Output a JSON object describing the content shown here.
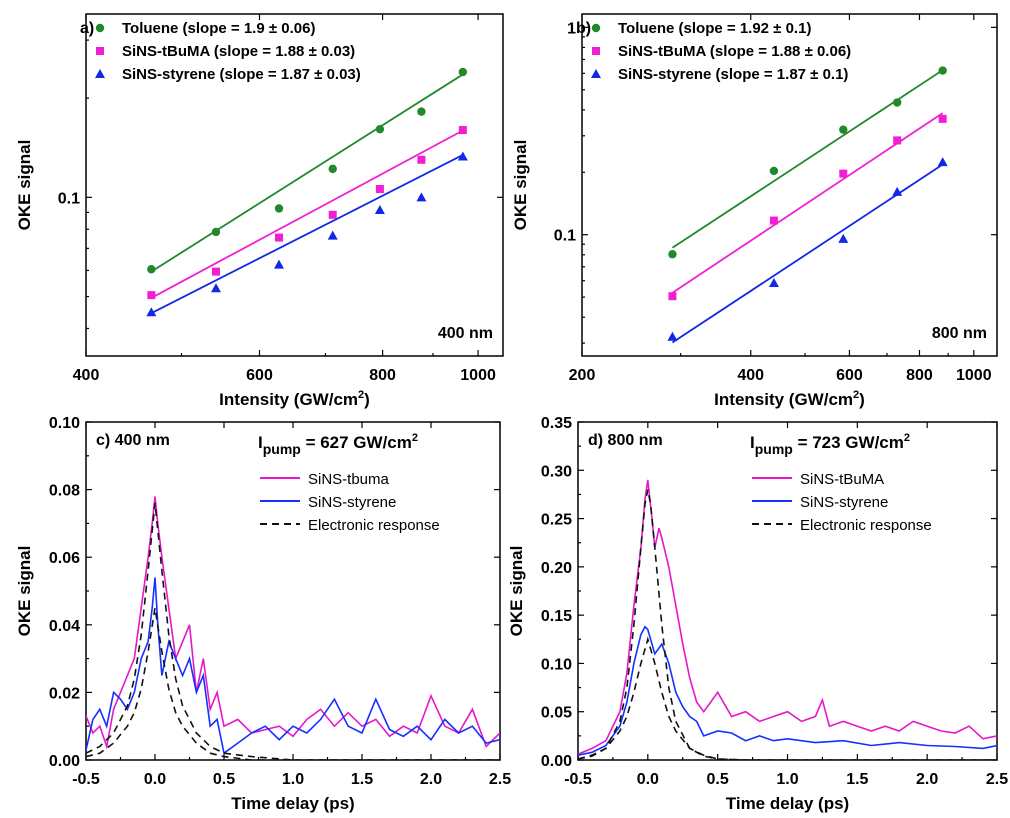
{
  "chart_data": [
    {
      "type": "scatter",
      "panel_label": "a)",
      "annotation": "400 nm",
      "xlabel": "Intensity",
      "xlabel_unit": "(GW/cm",
      "xlabel_sup": "2",
      "xlabel_close": ")",
      "ylabel": "OKE signal",
      "xscale": "log",
      "yscale": "log",
      "xlim": [
        400,
        1060
      ],
      "ylim": [
        0.033,
        0.36
      ],
      "xticks": [
        {
          "value": 400,
          "label": "400"
        },
        {
          "value": 600,
          "label": "600"
        },
        {
          "value": 800,
          "label": "800"
        },
        {
          "value": 1000,
          "label": "1000"
        }
      ],
      "yticks": [
        {
          "value": 0.1,
          "label": "0.1"
        }
      ],
      "legend_position": "top-left",
      "series": [
        {
          "name": "Toluene (slope = 1.9 ± 0.06)",
          "color": "#22892a",
          "marker": "circle",
          "x": [
            466,
            542,
            628,
            712,
            795,
            876,
            965
          ],
          "y": [
            0.0605,
            0.0785,
            0.0925,
            0.122,
            0.161,
            0.182,
            0.24
          ],
          "fit_x": [
            466,
            965
          ],
          "fit_y": [
            0.0595,
            0.236
          ]
        },
        {
          "name": "SiNS-tBuMA (slope = 1.88 ± 0.03)",
          "color": "#f21ed2",
          "marker": "square",
          "x": [
            466,
            542,
            628,
            712,
            795,
            876,
            965
          ],
          "y": [
            0.0505,
            0.0595,
            0.0755,
            0.0885,
            0.106,
            0.13,
            0.16
          ],
          "fit_x": [
            466,
            965
          ],
          "fit_y": [
            0.0495,
            0.1595
          ]
        },
        {
          "name": "SiNS-styrene (slope = 1.87 ± 0.03)",
          "color": "#1128e8",
          "marker": "triangle",
          "x": [
            466,
            542,
            628,
            712,
            795,
            876,
            965
          ],
          "y": [
            0.0448,
            0.053,
            0.0625,
            0.0765,
            0.0915,
            0.1,
            0.133
          ],
          "fit_x": [
            466,
            965
          ],
          "fit_y": [
            0.0445,
            0.1345
          ]
        }
      ]
    },
    {
      "type": "scatter",
      "panel_label": "b)",
      "annotation": "800 nm",
      "xlabel": "Intensity",
      "xlabel_unit": "(GW/cm",
      "xlabel_sup": "2",
      "xlabel_close": ")",
      "ylabel": "OKE signal",
      "xscale": "log",
      "yscale": "log",
      "xlim": [
        200,
        1100
      ],
      "ylim": [
        0.026,
        1.16
      ],
      "xticks": [
        {
          "value": 200,
          "label": "200"
        },
        {
          "value": 400,
          "label": "400"
        },
        {
          "value": 600,
          "label": "600"
        },
        {
          "value": 800,
          "label": "800"
        },
        {
          "value": 1000,
          "label": "1000"
        }
      ],
      "yticks": [
        {
          "value": 0.1,
          "label": "0.1"
        },
        {
          "value": 1,
          "label": "1"
        }
      ],
      "legend_position": "top-left",
      "series": [
        {
          "name": "Toluene (slope = 1.92 ± 0.1)",
          "color": "#22892a",
          "marker": "circle",
          "x": [
            290,
            440,
            585,
            730,
            880
          ],
          "y": [
            0.0805,
            0.203,
            0.321,
            0.434,
            0.619
          ],
          "fit_x": [
            290,
            880
          ],
          "fit_y": [
            0.0865,
            0.622
          ]
        },
        {
          "name": "SiNS-tBuMA (slope = 1.88 ± 0.06)",
          "color": "#f21ed2",
          "marker": "square",
          "x": [
            290,
            440,
            585,
            730,
            880
          ],
          "y": [
            0.0505,
            0.117,
            0.197,
            0.285,
            0.362
          ],
          "fit_x": [
            290,
            880
          ],
          "fit_y": [
            0.0525,
            0.386
          ]
        },
        {
          "name": "SiNS-styrene (slope = 1.87 ± 0.1)",
          "color": "#1128e8",
          "marker": "triangle",
          "x": [
            290,
            440,
            585,
            730,
            880
          ],
          "y": [
            0.0322,
            0.0585,
            0.0955,
            0.161,
            0.224
          ],
          "fit_x": [
            290,
            880
          ],
          "fit_y": [
            0.0302,
            0.218
          ]
        }
      ]
    },
    {
      "type": "line",
      "panel_label": "c) 400 nm",
      "pump_main": "I",
      "pump_sub": "pump",
      "pump_rest": " = 627 GW/cm",
      "pump_sup": "2",
      "xlabel": "Time delay (ps)",
      "ylabel": "OKE signal",
      "xlim": [
        -0.5,
        2.5
      ],
      "ylim": [
        0,
        0.1
      ],
      "xticks": [
        {
          "value": -0.5,
          "label": "-0.5"
        },
        {
          "value": 0,
          "label": "0.0"
        },
        {
          "value": 0.5,
          "label": "0.5"
        },
        {
          "value": 1,
          "label": "1.0"
        },
        {
          "value": 1.5,
          "label": "1.5"
        },
        {
          "value": 2,
          "label": "2.0"
        },
        {
          "value": 2.5,
          "label": "2.5"
        }
      ],
      "yticks": [
        {
          "value": 0,
          "label": "0.00"
        },
        {
          "value": 0.02,
          "label": "0.02"
        },
        {
          "value": 0.04,
          "label": "0.04"
        },
        {
          "value": 0.06,
          "label": "0.06"
        },
        {
          "value": 0.08,
          "label": "0.08"
        },
        {
          "value": 0.1,
          "label": "0.10"
        }
      ],
      "legend_position": "top-right",
      "series": [
        {
          "name": "SiNS-tbuma",
          "color": "#e617c8",
          "dash": "solid",
          "x": [
            -0.5,
            -0.45,
            -0.4,
            -0.35,
            -0.3,
            -0.25,
            -0.2,
            -0.15,
            -0.1,
            -0.05,
            -0.02,
            0.0,
            0.02,
            0.05,
            0.1,
            0.15,
            0.2,
            0.25,
            0.3,
            0.35,
            0.4,
            0.45,
            0.5,
            0.6,
            0.7,
            0.8,
            0.9,
            1.0,
            1.1,
            1.2,
            1.3,
            1.4,
            1.5,
            1.6,
            1.7,
            1.8,
            1.9,
            2.0,
            2.1,
            2.2,
            2.3,
            2.4,
            2.5
          ],
          "y": [
            0.013,
            0.008,
            0.01,
            0.004,
            0.015,
            0.02,
            0.025,
            0.03,
            0.045,
            0.06,
            0.07,
            0.078,
            0.07,
            0.06,
            0.045,
            0.03,
            0.035,
            0.04,
            0.02,
            0.03,
            0.015,
            0.02,
            0.01,
            0.012,
            0.008,
            0.009,
            0.01,
            0.007,
            0.012,
            0.015,
            0.01,
            0.014,
            0.01,
            0.012,
            0.007,
            0.01,
            0.008,
            0.019,
            0.01,
            0.008,
            0.015,
            0.004,
            0.008
          ]
        },
        {
          "name": "SiNS-styrene",
          "color": "#1530ff",
          "dash": "solid",
          "x": [
            -0.5,
            -0.45,
            -0.4,
            -0.35,
            -0.3,
            -0.25,
            -0.2,
            -0.15,
            -0.1,
            -0.05,
            -0.02,
            0.0,
            0.02,
            0.05,
            0.1,
            0.15,
            0.2,
            0.25,
            0.3,
            0.35,
            0.4,
            0.45,
            0.5,
            0.6,
            0.7,
            0.8,
            0.9,
            1.0,
            1.1,
            1.2,
            1.3,
            1.4,
            1.5,
            1.6,
            1.7,
            1.8,
            1.9,
            2.0,
            2.1,
            2.2,
            2.3,
            2.4,
            2.5
          ],
          "y": [
            0.003,
            0.012,
            0.015,
            0.01,
            0.02,
            0.018,
            0.015,
            0.02,
            0.03,
            0.035,
            0.045,
            0.054,
            0.04,
            0.025,
            0.035,
            0.03,
            0.025,
            0.03,
            0.02,
            0.025,
            0.01,
            0.012,
            0.002,
            0.005,
            0.008,
            0.01,
            0.006,
            0.01,
            0.008,
            0.012,
            0.018,
            0.01,
            0.008,
            0.018,
            0.009,
            0.007,
            0.01,
            0.006,
            0.012,
            0.008,
            0.01,
            0.005,
            0.006
          ]
        },
        {
          "name": "Electronic response",
          "color": "#111111",
          "dash": "dashed",
          "x": [
            -0.5,
            -0.4,
            -0.3,
            -0.2,
            -0.15,
            -0.1,
            -0.05,
            0.0,
            0.05,
            0.1,
            0.15,
            0.2,
            0.3,
            0.4,
            0.5,
            0.7,
            1.0,
            1.5,
            2.0,
            2.5
          ],
          "y": [
            0.002,
            0.004,
            0.008,
            0.016,
            0.024,
            0.037,
            0.056,
            0.076,
            0.056,
            0.037,
            0.024,
            0.016,
            0.008,
            0.004,
            0.002,
            0.001,
            0.0,
            0.0,
            0.0,
            0.0
          ]
        },
        {
          "name": "",
          "color": "#111111",
          "dash": "dashed",
          "x": [
            -0.5,
            -0.4,
            -0.3,
            -0.2,
            -0.15,
            -0.1,
            -0.05,
            0.0,
            0.05,
            0.1,
            0.15,
            0.2,
            0.3,
            0.4,
            0.5,
            0.7,
            1.0,
            1.5,
            2.0,
            2.5
          ],
          "y": [
            0.001,
            0.002,
            0.005,
            0.01,
            0.014,
            0.021,
            0.032,
            0.045,
            0.032,
            0.021,
            0.014,
            0.01,
            0.005,
            0.002,
            0.001,
            0.0,
            0.0,
            0.0,
            0.0,
            0.0
          ]
        }
      ]
    },
    {
      "type": "line",
      "panel_label": "d) 800 nm",
      "pump_main": "I",
      "pump_sub": "pump",
      "pump_rest": " = 723 GW/cm",
      "pump_sup": "2",
      "xlabel": "Time delay (ps)",
      "ylabel": "OKE signal",
      "xlim": [
        -0.5,
        2.5
      ],
      "ylim": [
        0,
        0.35
      ],
      "xticks": [
        {
          "value": -0.5,
          "label": "-0.5"
        },
        {
          "value": 0,
          "label": "0.0"
        },
        {
          "value": 0.5,
          "label": "0.5"
        },
        {
          "value": 1,
          "label": "1.0"
        },
        {
          "value": 1.5,
          "label": "1.5"
        },
        {
          "value": 2,
          "label": "2.0"
        },
        {
          "value": 2.5,
          "label": "2.5"
        }
      ],
      "yticks": [
        {
          "value": 0,
          "label": "0.00"
        },
        {
          "value": 0.05,
          "label": "0.05"
        },
        {
          "value": 0.1,
          "label": "0.10"
        },
        {
          "value": 0.15,
          "label": "0.15"
        },
        {
          "value": 0.2,
          "label": "0.20"
        },
        {
          "value": 0.25,
          "label": "0.25"
        },
        {
          "value": 0.3,
          "label": "0.30"
        },
        {
          "value": 0.35,
          "label": "0.35"
        }
      ],
      "legend_position": "top-right",
      "series": [
        {
          "name": "SiNS-tBuMA",
          "color": "#e617c8",
          "dash": "solid",
          "x": [
            -0.5,
            -0.4,
            -0.3,
            -0.2,
            -0.15,
            -0.1,
            -0.05,
            -0.02,
            0.0,
            0.03,
            0.05,
            0.08,
            0.1,
            0.15,
            0.2,
            0.25,
            0.3,
            0.35,
            0.4,
            0.5,
            0.6,
            0.7,
            0.8,
            0.9,
            1.0,
            1.1,
            1.2,
            1.25,
            1.3,
            1.4,
            1.5,
            1.6,
            1.7,
            1.8,
            1.9,
            2.0,
            2.1,
            2.2,
            2.3,
            2.4,
            2.5
          ],
          "y": [
            0.006,
            0.012,
            0.02,
            0.05,
            0.09,
            0.16,
            0.22,
            0.27,
            0.29,
            0.25,
            0.22,
            0.24,
            0.23,
            0.2,
            0.16,
            0.12,
            0.085,
            0.06,
            0.05,
            0.07,
            0.045,
            0.05,
            0.04,
            0.045,
            0.05,
            0.04,
            0.045,
            0.062,
            0.035,
            0.04,
            0.035,
            0.03,
            0.035,
            0.03,
            0.04,
            0.035,
            0.03,
            0.028,
            0.035,
            0.022,
            0.025
          ]
        },
        {
          "name": "SiNS-styrene",
          "color": "#1530ff",
          "dash": "solid",
          "x": [
            -0.5,
            -0.4,
            -0.3,
            -0.2,
            -0.15,
            -0.1,
            -0.05,
            -0.02,
            0.0,
            0.05,
            0.1,
            0.15,
            0.2,
            0.25,
            0.3,
            0.35,
            0.4,
            0.5,
            0.6,
            0.7,
            0.8,
            0.9,
            1.0,
            1.2,
            1.4,
            1.6,
            1.8,
            2.0,
            2.2,
            2.4,
            2.5
          ],
          "y": [
            0.005,
            0.008,
            0.015,
            0.035,
            0.06,
            0.1,
            0.13,
            0.138,
            0.135,
            0.11,
            0.12,
            0.1,
            0.07,
            0.055,
            0.045,
            0.04,
            0.025,
            0.03,
            0.028,
            0.02,
            0.025,
            0.02,
            0.022,
            0.018,
            0.02,
            0.015,
            0.018,
            0.015,
            0.014,
            0.012,
            0.015
          ]
        },
        {
          "name": "Electronic response",
          "color": "#111111",
          "dash": "dashed",
          "x": [
            -0.5,
            -0.4,
            -0.3,
            -0.2,
            -0.15,
            -0.1,
            -0.05,
            -0.02,
            0.0,
            0.02,
            0.05,
            0.1,
            0.15,
            0.2,
            0.3,
            0.4,
            0.5,
            0.7,
            1.0,
            1.5,
            2.0,
            2.5
          ],
          "y": [
            0.001,
            0.004,
            0.012,
            0.04,
            0.075,
            0.14,
            0.22,
            0.265,
            0.28,
            0.265,
            0.22,
            0.14,
            0.075,
            0.04,
            0.012,
            0.004,
            0.001,
            0.0,
            0.0,
            0.0,
            0.0,
            0.0
          ]
        },
        {
          "name": "",
          "color": "#111111",
          "dash": "dashed",
          "x": [
            -0.5,
            -0.4,
            -0.3,
            -0.2,
            -0.15,
            -0.1,
            -0.05,
            0.0,
            0.05,
            0.1,
            0.15,
            0.2,
            0.3,
            0.4,
            0.5,
            0.7,
            1.0,
            1.5,
            2.0,
            2.5
          ],
          "y": [
            0.001,
            0.005,
            0.012,
            0.03,
            0.045,
            0.07,
            0.1,
            0.125,
            0.1,
            0.07,
            0.045,
            0.03,
            0.012,
            0.005,
            0.001,
            0.0,
            0.0,
            0.0,
            0.0,
            0.0
          ]
        }
      ]
    }
  ]
}
